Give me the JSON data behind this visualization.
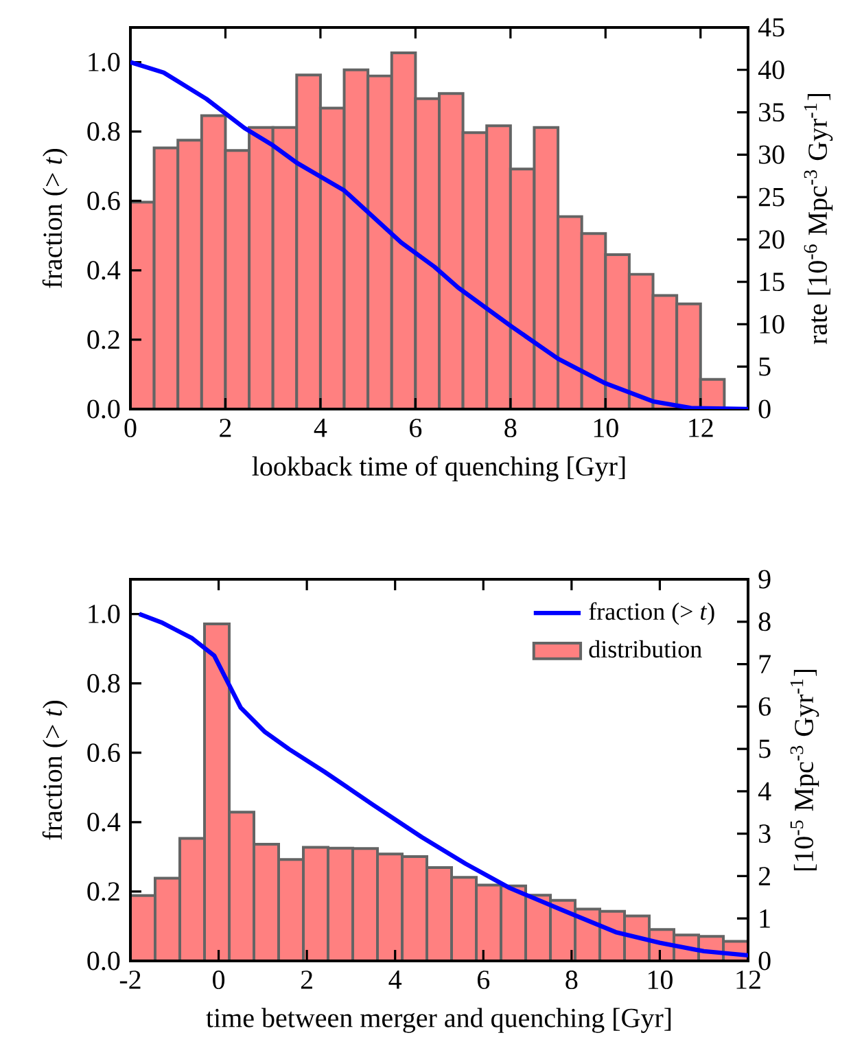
{
  "chart_data": [
    {
      "type": "histogram",
      "xlabel": "lookback time of quenching [Gyr]",
      "ylabel": "fraction (> *t*)",
      "y2label": "rate [10$^{-6}$ Mpc$^{-3}$ Gyr$^{-1}$]",
      "xlim": [
        0,
        13
      ],
      "xticks": [
        0,
        2,
        4,
        6,
        8,
        10,
        12
      ],
      "ylim": [
        0,
        1.1
      ],
      "yticks": [
        {
          "value": 0,
          "label": "0.0"
        },
        {
          "value": 0.2,
          "label": "0.2"
        },
        {
          "value": 0.4,
          "label": "0.4"
        },
        {
          "value": 0.6,
          "label": "0.6"
        },
        {
          "value": 0.8,
          "label": "0.8"
        },
        {
          "value": 1.0,
          "label": "1.0"
        }
      ],
      "y2lim": [
        0,
        45
      ],
      "y2ticks": [
        0,
        5,
        10,
        15,
        20,
        25,
        30,
        35,
        40,
        45
      ],
      "series": [
        {
          "axis": "y2",
          "color": "#ff8080",
          "bins": [
            0,
            0.5,
            1,
            1.5,
            2,
            2.5,
            3,
            3.5,
            4,
            4.5,
            5,
            5.5,
            6,
            6.5,
            7,
            7.5,
            8,
            8.5,
            9,
            9.5,
            10,
            10.5,
            11,
            11.5,
            12,
            12.5,
            13
          ],
          "values": [
            24.4,
            30.8,
            31.7,
            34.6,
            30.5,
            33.2,
            33.2,
            39.4,
            35.5,
            40.0,
            39.3,
            42.0,
            36.6,
            37.2,
            32.6,
            33.4,
            28.3,
            33.2,
            22.7,
            20.7,
            18.2,
            15.9,
            13.4,
            12.4,
            3.5,
            null
          ]
        },
        {
          "type": "line",
          "axis": "y",
          "color": "#0000ff",
          "x": [
            0,
            0.7,
            1.6,
            2.4,
            3,
            3.5,
            4,
            4.5,
            5.7,
            6.4,
            6.9,
            8,
            9,
            10,
            11,
            11.8,
            13
          ],
          "values": [
            1.0,
            0.97,
            0.894,
            0.81,
            0.76,
            0.71,
            0.67,
            0.63,
            0.48,
            0.41,
            0.35,
            0.24,
            0.145,
            0.074,
            0.022,
            0.003,
            0
          ]
        }
      ]
    },
    {
      "type": "histogram",
      "xlabel": "time between merger and quenching [Gyr]",
      "ylabel": "fraction (> *t*)",
      "y2label": "[10$^{-5}$ Mpc$^{-3}$ Gyr$^{-1}$]",
      "legend": "top right",
      "xlim": [
        -2,
        12
      ],
      "xticks": [
        -2,
        0,
        2,
        4,
        6,
        8,
        10,
        12
      ],
      "ylim": [
        0,
        1.1
      ],
      "yticks": [
        {
          "value": 0,
          "label": "0.0"
        },
        {
          "value": 0.2,
          "label": "0.2"
        },
        {
          "value": 0.4,
          "label": "0.4"
        },
        {
          "value": 0.6,
          "label": "0.6"
        },
        {
          "value": 0.8,
          "label": "0.8"
        },
        {
          "value": 1.0,
          "label": "1.0"
        }
      ],
      "y2lim": [
        0,
        9
      ],
      "y2ticks": [
        0,
        1,
        2,
        3,
        4,
        5,
        6,
        7,
        8,
        9
      ],
      "series": [
        {
          "axis": "y2",
          "name": "distribution",
          "color": "#ff8080",
          "bins": [
            -2,
            -1.44,
            -0.88,
            -0.32,
            0.24,
            0.8,
            1.36,
            1.92,
            2.48,
            3.04,
            3.6,
            4.16,
            4.72,
            5.28,
            5.84,
            6.4,
            6.96,
            7.52,
            8.08,
            8.64,
            9.2,
            9.76,
            10.32,
            10.88,
            11.44,
            12
          ],
          "values": [
            1.54,
            1.95,
            2.89,
            7.95,
            3.51,
            2.75,
            2.39,
            2.68,
            2.66,
            2.65,
            2.52,
            2.46,
            2.2,
            1.97,
            1.79,
            1.77,
            1.55,
            1.43,
            1.22,
            1.17,
            1.06,
            0.74,
            0.61,
            0.58,
            0.46
          ]
        },
        {
          "type": "line",
          "axis": "y",
          "name": "fraction (> *t*)",
          "color": "#0000ff",
          "x": [
            -1.8,
            -1.3,
            -0.6,
            -0.1,
            0.5,
            1.05,
            1.6,
            2.4,
            3.5,
            4.6,
            5.6,
            6.6,
            7.8,
            9,
            10,
            11,
            12
          ],
          "values": [
            1.0,
            0.976,
            0.93,
            0.88,
            0.73,
            0.66,
            0.61,
            0.545,
            0.45,
            0.357,
            0.28,
            0.21,
            0.146,
            0.083,
            0.052,
            0.028,
            0.016
          ]
        }
      ]
    }
  ]
}
